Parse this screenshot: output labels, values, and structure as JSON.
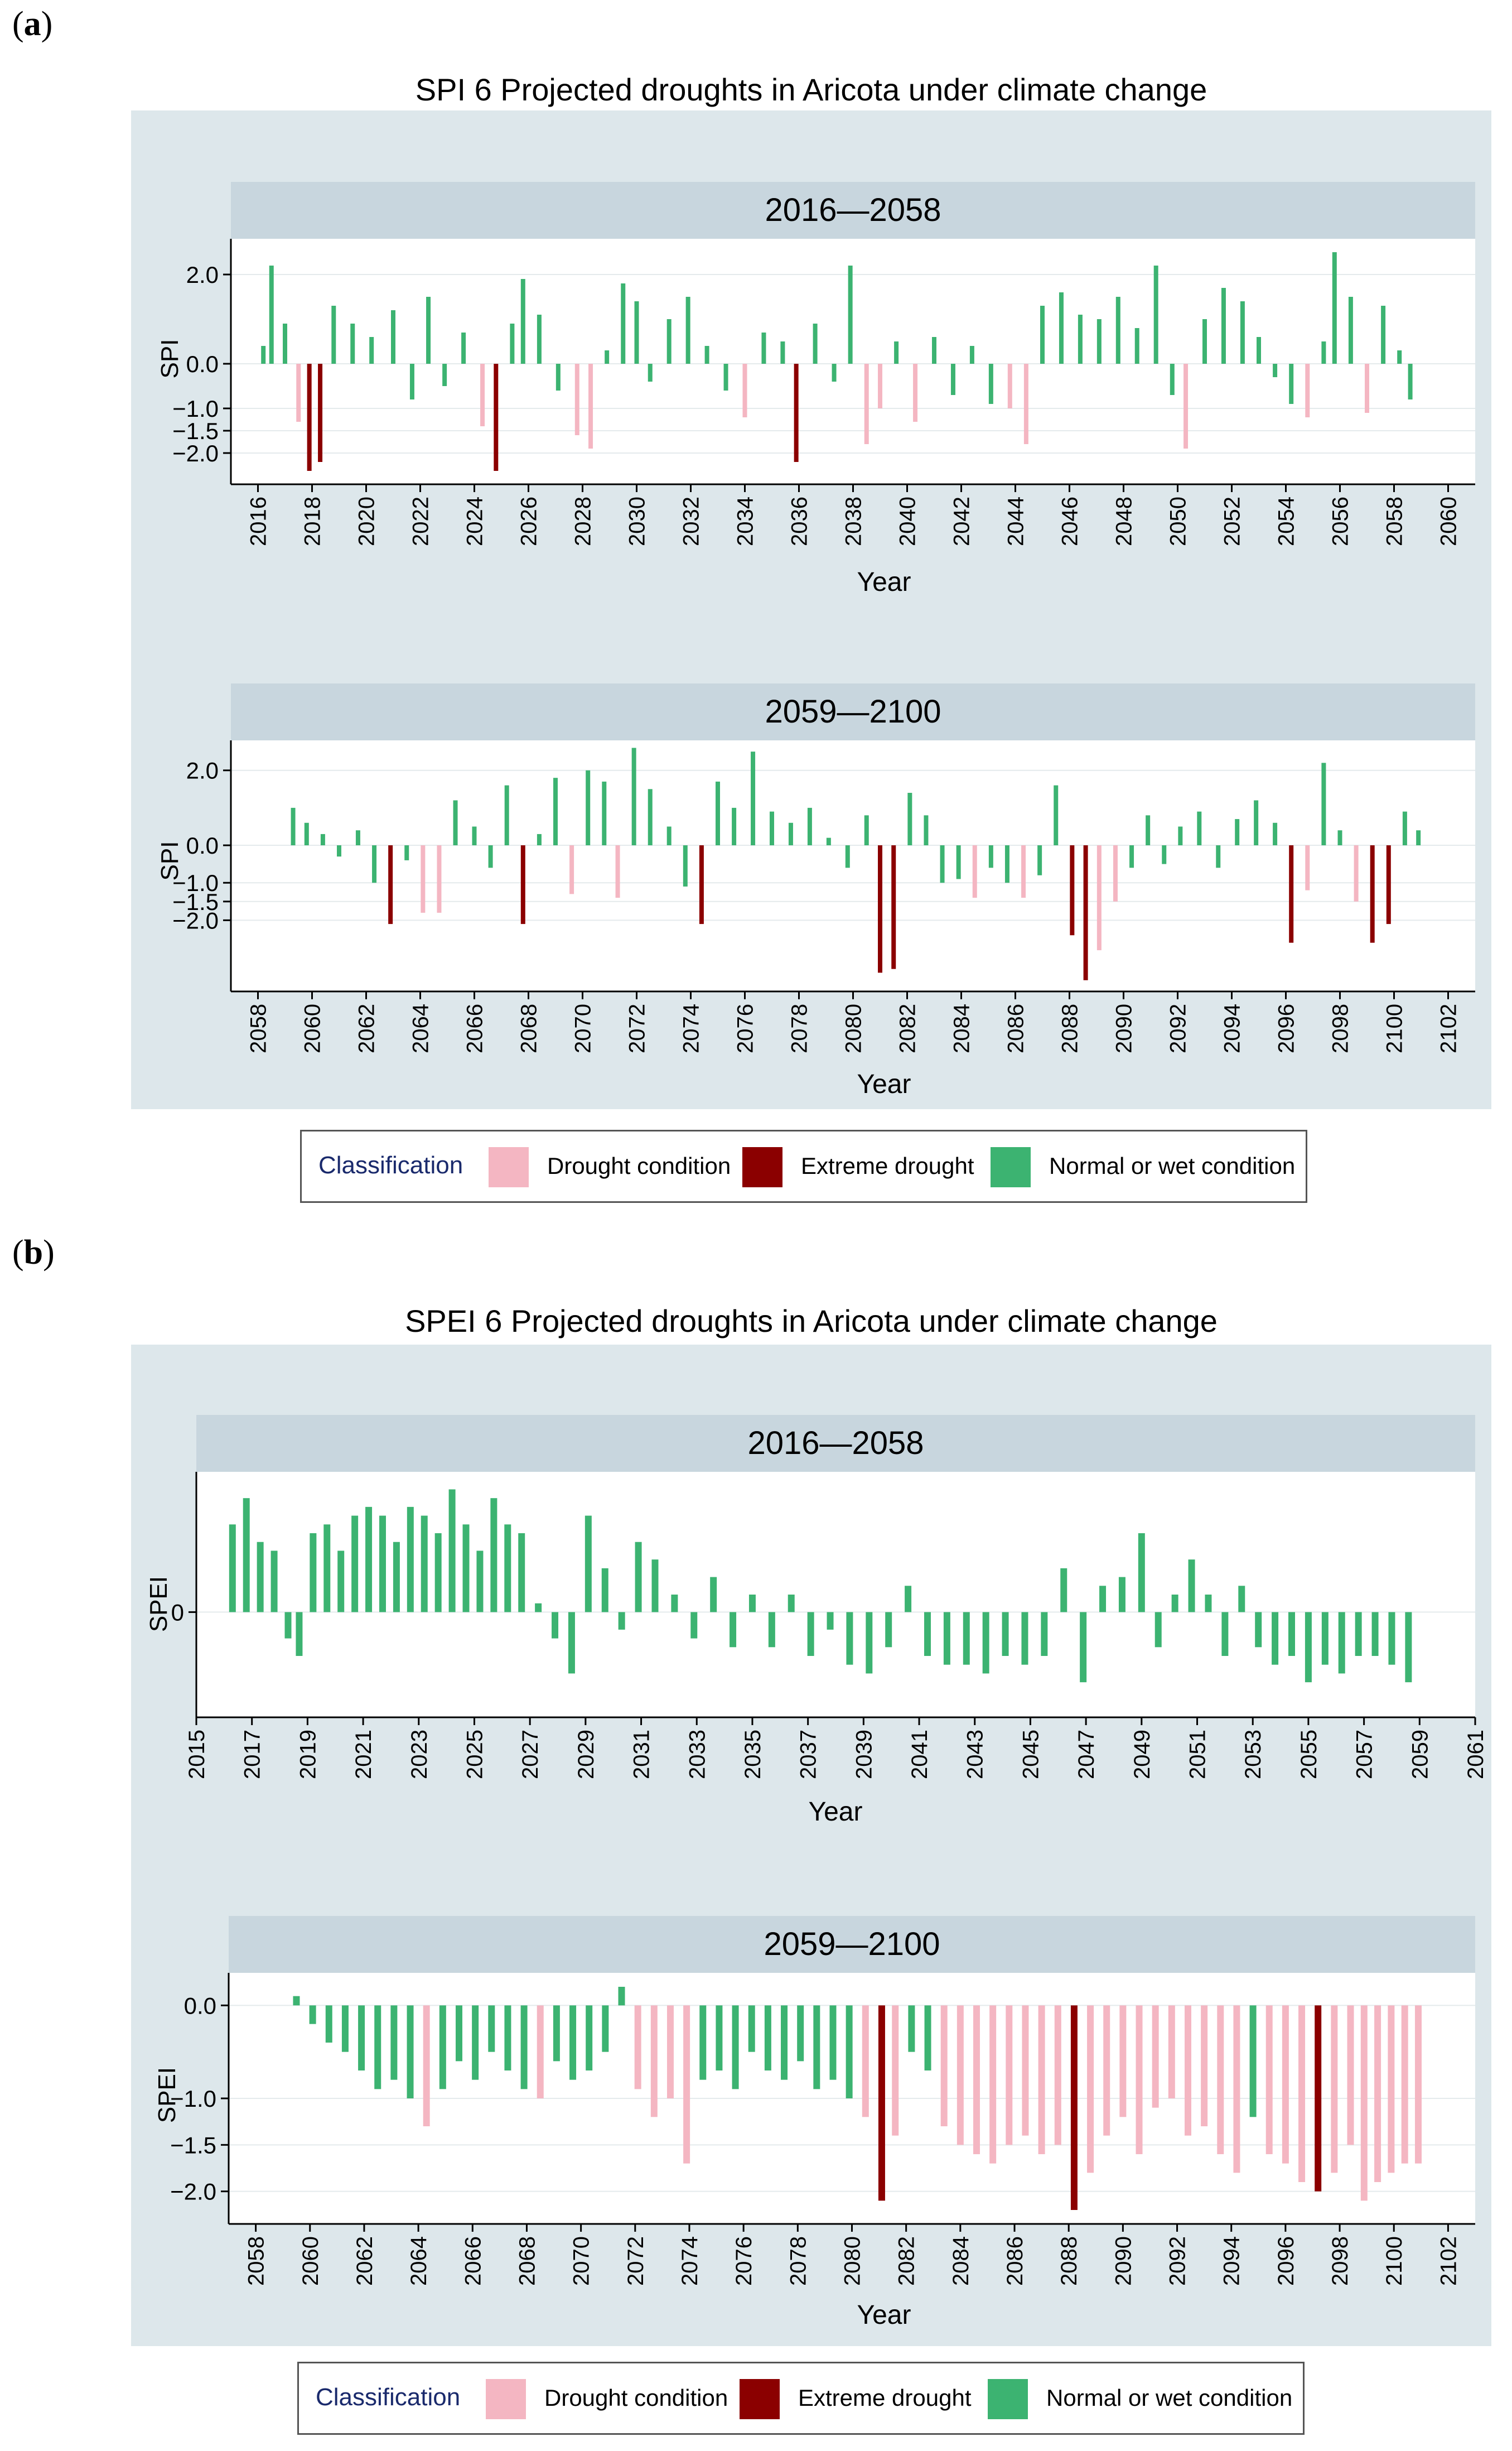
{
  "panels": {
    "a": {
      "letter_open": "(",
      "letter": "a",
      "letter_close": ")",
      "title": "SPI 6 Projected droughts in Aricota under climate change",
      "ylabel": "SPI",
      "xlabel": "Year",
      "legend": {
        "title": "Classification",
        "items": [
          "Drought condition",
          "Extreme drought",
          "Normal or wet condition"
        ]
      }
    },
    "b": {
      "letter_open": "(",
      "letter": "b",
      "letter_close": ")",
      "title": "SPEI 6 Projected droughts in Aricota under climate change",
      "ylabel": "SPEI",
      "xlabel": "Year",
      "legend": {
        "title": "Classification",
        "items": [
          "Drought condition",
          "Extreme drought",
          "Normal or wet condition"
        ]
      }
    }
  },
  "colors": {
    "drought": "#f4b6c2",
    "extreme": "#8b0000",
    "normal": "#3cb371",
    "figure_bg": "#dde7eb",
    "strip_bg": "#c8d6de"
  },
  "chart_data": [
    {
      "type": "bar",
      "panel": "a",
      "strip": "2016—2058",
      "xlabel": "Year",
      "ylabel": "SPI",
      "xlim": [
        2015,
        2061
      ],
      "ylim": [
        -2.7,
        2.8
      ],
      "yticks": [
        -2.0,
        -1.5,
        -1.0,
        0.0,
        2.0
      ],
      "ytick_labels": [
        "−2.0",
        "−1.5",
        "−1.0",
        "0.0",
        "2.0"
      ],
      "xticks": [
        2016,
        2018,
        2020,
        2022,
        2024,
        2026,
        2028,
        2030,
        2032,
        2034,
        2036,
        2038,
        2040,
        2042,
        2044,
        2046,
        2048,
        2050,
        2052,
        2054,
        2056,
        2058,
        2060
      ],
      "x": [
        2016.2,
        2016.5,
        2017.0,
        2017.5,
        2017.9,
        2018.3,
        2018.8,
        2019.5,
        2020.2,
        2021.0,
        2021.7,
        2022.3,
        2022.9,
        2023.6,
        2024.3,
        2024.8,
        2025.4,
        2025.8,
        2026.4,
        2027.1,
        2027.8,
        2028.3,
        2028.9,
        2029.5,
        2030.0,
        2030.5,
        2031.2,
        2031.9,
        2032.6,
        2033.3,
        2034.0,
        2034.7,
        2035.4,
        2035.9,
        2036.6,
        2037.3,
        2037.9,
        2038.5,
        2039.0,
        2039.6,
        2040.3,
        2041.0,
        2041.7,
        2042.4,
        2043.1,
        2043.8,
        2044.4,
        2045.0,
        2045.7,
        2046.4,
        2047.1,
        2047.8,
        2048.5,
        2049.2,
        2049.8,
        2050.3,
        2051.0,
        2051.7,
        2052.4,
        2053.0,
        2053.6,
        2054.2,
        2054.8,
        2055.4,
        2055.8,
        2056.4,
        2057.0,
        2057.6,
        2058.2,
        2058.6
      ],
      "values": [
        0.4,
        2.2,
        0.9,
        -1.3,
        -2.4,
        -2.2,
        1.3,
        0.9,
        0.6,
        1.2,
        -0.8,
        1.5,
        -0.5,
        0.7,
        -1.4,
        -2.4,
        0.9,
        1.9,
        1.1,
        -0.6,
        -1.6,
        -1.9,
        0.3,
        1.8,
        1.4,
        -0.4,
        1.0,
        1.5,
        0.4,
        -0.6,
        -1.2,
        0.7,
        0.5,
        -2.2,
        0.9,
        -0.4,
        2.2,
        -1.8,
        -1.0,
        0.5,
        -1.3,
        0.6,
        -0.7,
        0.4,
        -0.9,
        -1.0,
        -1.8,
        1.3,
        1.6,
        1.1,
        1.0,
        1.5,
        0.8,
        2.2,
        -0.7,
        -1.9,
        1.0,
        1.7,
        1.4,
        0.6,
        -0.3,
        -0.9,
        -1.2,
        0.5,
        2.5,
        1.5,
        -1.1,
        1.3,
        0.3,
        -0.8
      ],
      "categories_by_bar": [
        "normal",
        "normal",
        "normal",
        "drought",
        "extreme",
        "extreme",
        "normal",
        "normal",
        "normal",
        "normal",
        "normal",
        "normal",
        "normal",
        "normal",
        "drought",
        "extreme",
        "normal",
        "normal",
        "normal",
        "normal",
        "drought",
        "drought",
        "normal",
        "normal",
        "normal",
        "normal",
        "normal",
        "normal",
        "normal",
        "normal",
        "drought",
        "normal",
        "normal",
        "extreme",
        "normal",
        "normal",
        "normal",
        "drought",
        "drought",
        "normal",
        "drought",
        "normal",
        "normal",
        "normal",
        "normal",
        "drought",
        "drought",
        "normal",
        "normal",
        "normal",
        "normal",
        "normal",
        "normal",
        "normal",
        "normal",
        "drought",
        "normal",
        "normal",
        "normal",
        "normal",
        "normal",
        "normal",
        "drought",
        "normal",
        "normal",
        "normal",
        "drought",
        "normal",
        "normal",
        "normal"
      ]
    },
    {
      "type": "bar",
      "panel": "a",
      "strip": "2059—2100",
      "xlabel": "Year",
      "ylabel": "SPI",
      "xlim": [
        2057,
        2103
      ],
      "ylim": [
        -3.9,
        2.8
      ],
      "yticks": [
        -2.0,
        -1.5,
        -1.0,
        0.0,
        2.0
      ],
      "ytick_labels": [
        "−2.0",
        "−1.5",
        "−1.0",
        "0.0",
        "2.0"
      ],
      "xticks": [
        2058,
        2060,
        2062,
        2064,
        2066,
        2068,
        2070,
        2072,
        2074,
        2076,
        2078,
        2080,
        2082,
        2084,
        2086,
        2088,
        2090,
        2092,
        2094,
        2096,
        2098,
        2100,
        2102
      ],
      "x": [
        2059.3,
        2059.8,
        2060.4,
        2061.0,
        2061.7,
        2062.3,
        2062.9,
        2063.5,
        2064.1,
        2064.7,
        2065.3,
        2066.0,
        2066.6,
        2067.2,
        2067.8,
        2068.4,
        2069.0,
        2069.6,
        2070.2,
        2070.8,
        2071.3,
        2071.9,
        2072.5,
        2073.2,
        2073.8,
        2074.4,
        2075.0,
        2075.6,
        2076.3,
        2077.0,
        2077.7,
        2078.4,
        2079.1,
        2079.8,
        2080.5,
        2081.0,
        2081.5,
        2082.1,
        2082.7,
        2083.3,
        2083.9,
        2084.5,
        2085.1,
        2085.7,
        2086.3,
        2086.9,
        2087.5,
        2088.1,
        2088.6,
        2089.1,
        2089.7,
        2090.3,
        2090.9,
        2091.5,
        2092.1,
        2092.8,
        2093.5,
        2094.2,
        2094.9,
        2095.6,
        2096.2,
        2096.8,
        2097.4,
        2098.0,
        2098.6,
        2099.2,
        2099.8,
        2100.4,
        2100.9
      ],
      "values": [
        1.0,
        0.6,
        0.3,
        -0.3,
        0.4,
        -1.0,
        -2.1,
        -0.4,
        -1.8,
        -1.8,
        1.2,
        0.5,
        -0.6,
        1.6,
        -2.1,
        0.3,
        1.8,
        -1.3,
        2.0,
        1.7,
        -1.4,
        2.6,
        1.5,
        0.5,
        -1.1,
        -2.1,
        1.7,
        1.0,
        2.5,
        0.9,
        0.6,
        1.0,
        0.2,
        -0.6,
        0.8,
        -3.4,
        -3.3,
        1.4,
        0.8,
        -1.0,
        -0.9,
        -1.4,
        -0.6,
        -1.0,
        -1.4,
        -0.8,
        1.6,
        -2.4,
        -3.6,
        -2.8,
        -1.5,
        -0.6,
        0.8,
        -0.5,
        0.5,
        0.9,
        -0.6,
        0.7,
        1.2,
        0.6,
        -2.6,
        -1.2,
        2.2,
        0.4,
        -1.5,
        -2.6,
        -2.1,
        0.9,
        0.4
      ],
      "categories_by_bar": [
        "normal",
        "normal",
        "normal",
        "normal",
        "normal",
        "normal",
        "extreme",
        "normal",
        "drought",
        "drought",
        "normal",
        "normal",
        "normal",
        "normal",
        "extreme",
        "normal",
        "normal",
        "drought",
        "normal",
        "normal",
        "drought",
        "normal",
        "normal",
        "normal",
        "normal",
        "extreme",
        "normal",
        "normal",
        "normal",
        "normal",
        "normal",
        "normal",
        "normal",
        "normal",
        "normal",
        "extreme",
        "extreme",
        "normal",
        "normal",
        "normal",
        "normal",
        "drought",
        "normal",
        "normal",
        "drought",
        "normal",
        "normal",
        "extreme",
        "extreme",
        "drought",
        "drought",
        "normal",
        "normal",
        "normal",
        "normal",
        "normal",
        "normal",
        "normal",
        "normal",
        "normal",
        "extreme",
        "drought",
        "normal",
        "normal",
        "drought",
        "extreme",
        "extreme",
        "normal",
        "normal"
      ]
    },
    {
      "type": "bar",
      "panel": "b",
      "strip": "2016—2058",
      "xlabel": "Year",
      "ylabel": "SPEI",
      "xlim": [
        2015,
        2061
      ],
      "ylim": [
        -1.2,
        1.6
      ],
      "yticks": [
        0
      ],
      "ytick_labels": [
        "0"
      ],
      "xticks": [
        2015,
        2017,
        2019,
        2021,
        2023,
        2025,
        2027,
        2029,
        2031,
        2033,
        2035,
        2037,
        2039,
        2041,
        2043,
        2045,
        2047,
        2049,
        2051,
        2053,
        2055,
        2057,
        2059,
        2061
      ],
      "x": [
        2016.3,
        2016.8,
        2017.3,
        2017.8,
        2018.3,
        2018.7,
        2019.2,
        2019.7,
        2020.2,
        2020.7,
        2021.2,
        2021.7,
        2022.2,
        2022.7,
        2023.2,
        2023.7,
        2024.2,
        2024.7,
        2025.2,
        2025.7,
        2026.2,
        2026.7,
        2027.3,
        2027.9,
        2028.5,
        2029.1,
        2029.7,
        2030.3,
        2030.9,
        2031.5,
        2032.2,
        2032.9,
        2033.6,
        2034.3,
        2035.0,
        2035.7,
        2036.4,
        2037.1,
        2037.8,
        2038.5,
        2039.2,
        2039.9,
        2040.6,
        2041.3,
        2042.0,
        2042.7,
        2043.4,
        2044.1,
        2044.8,
        2045.5,
        2046.2,
        2046.9,
        2047.6,
        2048.3,
        2049.0,
        2049.6,
        2050.2,
        2050.8,
        2051.4,
        2052.0,
        2052.6,
        2053.2,
        2053.8,
        2054.4,
        2055.0,
        2055.6,
        2056.2,
        2056.8,
        2057.4,
        2058.0,
        2058.6
      ],
      "values": [
        1.0,
        1.3,
        0.8,
        0.7,
        -0.3,
        -0.5,
        0.9,
        1.0,
        0.7,
        1.1,
        1.2,
        1.1,
        0.8,
        1.2,
        1.1,
        0.9,
        1.4,
        1.0,
        0.7,
        1.3,
        1.0,
        0.9,
        0.1,
        -0.3,
        -0.7,
        1.1,
        0.5,
        -0.2,
        0.8,
        0.6,
        0.2,
        -0.3,
        0.4,
        -0.4,
        0.2,
        -0.4,
        0.2,
        -0.5,
        -0.2,
        -0.6,
        -0.7,
        -0.4,
        0.3,
        -0.5,
        -0.6,
        -0.6,
        -0.7,
        -0.5,
        -0.6,
        -0.5,
        0.5,
        -0.8,
        0.3,
        0.4,
        0.9,
        -0.4,
        0.2,
        0.6,
        0.2,
        -0.5,
        0.3,
        -0.4,
        -0.6,
        -0.5,
        -0.8,
        -0.6,
        -0.7,
        -0.5,
        -0.5,
        -0.6,
        -0.8
      ],
      "categories_by_bar": [
        "normal",
        "normal",
        "normal",
        "normal",
        "normal",
        "normal",
        "normal",
        "normal",
        "normal",
        "normal",
        "normal",
        "normal",
        "normal",
        "normal",
        "normal",
        "normal",
        "normal",
        "normal",
        "normal",
        "normal",
        "normal",
        "normal",
        "normal",
        "normal",
        "normal",
        "normal",
        "normal",
        "normal",
        "normal",
        "normal",
        "normal",
        "normal",
        "normal",
        "normal",
        "normal",
        "normal",
        "normal",
        "normal",
        "normal",
        "normal",
        "normal",
        "normal",
        "normal",
        "normal",
        "normal",
        "normal",
        "normal",
        "normal",
        "normal",
        "normal",
        "normal",
        "normal",
        "normal",
        "normal",
        "normal",
        "normal",
        "normal",
        "normal",
        "normal",
        "normal",
        "normal",
        "normal",
        "normal",
        "normal",
        "normal",
        "normal",
        "normal",
        "normal",
        "normal",
        "normal",
        "normal"
      ]
    },
    {
      "type": "bar",
      "panel": "b",
      "strip": "2059—2100",
      "xlabel": "Year",
      "ylabel": "SPEI",
      "xlim": [
        2057,
        2103
      ],
      "ylim": [
        -2.35,
        0.35
      ],
      "yticks": [
        -2.0,
        -1.5,
        -1.0,
        0.0
      ],
      "ytick_labels": [
        "−2.0",
        "−1.5",
        "−1.0",
        "0.0"
      ],
      "xticks": [
        2058,
        2060,
        2062,
        2064,
        2066,
        2068,
        2070,
        2072,
        2074,
        2076,
        2078,
        2080,
        2082,
        2084,
        2086,
        2088,
        2090,
        2092,
        2094,
        2096,
        2098,
        2100,
        2102
      ],
      "x": [
        2059.5,
        2060.1,
        2060.7,
        2061.3,
        2061.9,
        2062.5,
        2063.1,
        2063.7,
        2064.3,
        2064.9,
        2065.5,
        2066.1,
        2066.7,
        2067.3,
        2067.9,
        2068.5,
        2069.1,
        2069.7,
        2070.3,
        2070.9,
        2071.5,
        2072.1,
        2072.7,
        2073.3,
        2073.9,
        2074.5,
        2075.1,
        2075.7,
        2076.3,
        2076.9,
        2077.5,
        2078.1,
        2078.7,
        2079.3,
        2079.9,
        2080.5,
        2081.1,
        2081.6,
        2082.2,
        2082.8,
        2083.4,
        2084.0,
        2084.6,
        2085.2,
        2085.8,
        2086.4,
        2087.0,
        2087.6,
        2088.2,
        2088.8,
        2089.4,
        2090.0,
        2090.6,
        2091.2,
        2091.8,
        2092.4,
        2093.0,
        2093.6,
        2094.2,
        2094.8,
        2095.4,
        2096.0,
        2096.6,
        2097.2,
        2097.8,
        2098.4,
        2098.9,
        2099.4,
        2099.9,
        2100.4,
        2100.9
      ],
      "values": [
        0.1,
        -0.2,
        -0.4,
        -0.5,
        -0.7,
        -0.9,
        -0.8,
        -1.0,
        -1.3,
        -0.9,
        -0.6,
        -0.8,
        -0.5,
        -0.7,
        -0.9,
        -1.0,
        -0.6,
        -0.8,
        -0.7,
        -0.5,
        0.2,
        -0.9,
        -1.2,
        -1.0,
        -1.7,
        -0.8,
        -0.7,
        -0.9,
        -0.5,
        -0.7,
        -0.8,
        -0.6,
        -0.9,
        -0.8,
        -1.0,
        -1.2,
        -2.1,
        -1.4,
        -0.5,
        -0.7,
        -1.3,
        -1.5,
        -1.6,
        -1.7,
        -1.5,
        -1.4,
        -1.6,
        -1.5,
        -2.2,
        -1.8,
        -1.4,
        -1.2,
        -1.6,
        -1.1,
        -1.0,
        -1.4,
        -1.3,
        -1.6,
        -1.8,
        -1.2,
        -1.6,
        -1.7,
        -1.9,
        -2.0,
        -1.8,
        -1.5,
        -2.1,
        -1.9,
        -1.8,
        -1.7,
        -1.7
      ],
      "categories_by_bar": [
        "normal",
        "normal",
        "normal",
        "normal",
        "normal",
        "normal",
        "normal",
        "normal",
        "drought",
        "normal",
        "normal",
        "normal",
        "normal",
        "normal",
        "normal",
        "drought",
        "normal",
        "normal",
        "normal",
        "normal",
        "normal",
        "drought",
        "drought",
        "drought",
        "drought",
        "normal",
        "normal",
        "normal",
        "normal",
        "normal",
        "normal",
        "normal",
        "normal",
        "normal",
        "normal",
        "drought",
        "extreme",
        "drought",
        "normal",
        "normal",
        "drought",
        "drought",
        "drought",
        "drought",
        "drought",
        "drought",
        "drought",
        "drought",
        "extreme",
        "drought",
        "drought",
        "drought",
        "drought",
        "drought",
        "drought",
        "drought",
        "drought",
        "drought",
        "drought",
        "normal",
        "drought",
        "drought",
        "drought",
        "extreme",
        "drought",
        "drought",
        "drought",
        "drought",
        "drought",
        "drought",
        "drought"
      ]
    }
  ]
}
